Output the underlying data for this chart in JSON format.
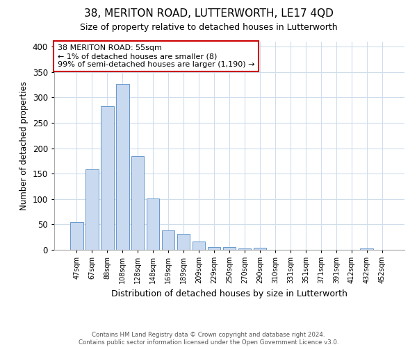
{
  "title": "38, MERITON ROAD, LUTTERWORTH, LE17 4QD",
  "subtitle": "Size of property relative to detached houses in Lutterworth",
  "xlabel": "Distribution of detached houses by size in Lutterworth",
  "ylabel": "Number of detached properties",
  "categories": [
    "47sqm",
    "67sqm",
    "88sqm",
    "108sqm",
    "128sqm",
    "148sqm",
    "169sqm",
    "189sqm",
    "209sqm",
    "229sqm",
    "250sqm",
    "270sqm",
    "290sqm",
    "310sqm",
    "331sqm",
    "351sqm",
    "371sqm",
    "391sqm",
    "412sqm",
    "432sqm",
    "452sqm"
  ],
  "values": [
    54,
    158,
    283,
    326,
    184,
    101,
    38,
    32,
    17,
    6,
    5,
    3,
    4,
    0,
    0,
    0,
    0,
    0,
    0,
    3,
    0
  ],
  "bar_color": "#c9d9f0",
  "bar_edge_color": "#6699cc",
  "grid_color": "#d0dded",
  "background_color": "#ffffff",
  "annotation_text": "38 MERITON ROAD: 55sqm\n← 1% of detached houses are smaller (8)\n99% of semi-detached houses are larger (1,190) →",
  "annotation_box_color": "#ffffff",
  "annotation_box_edge_color": "#cc0000",
  "footer_text": "Contains HM Land Registry data © Crown copyright and database right 2024.\nContains public sector information licensed under the Open Government Licence v3.0.",
  "ylim": [
    0,
    410
  ],
  "yticks": [
    0,
    50,
    100,
    150,
    200,
    250,
    300,
    350,
    400
  ]
}
